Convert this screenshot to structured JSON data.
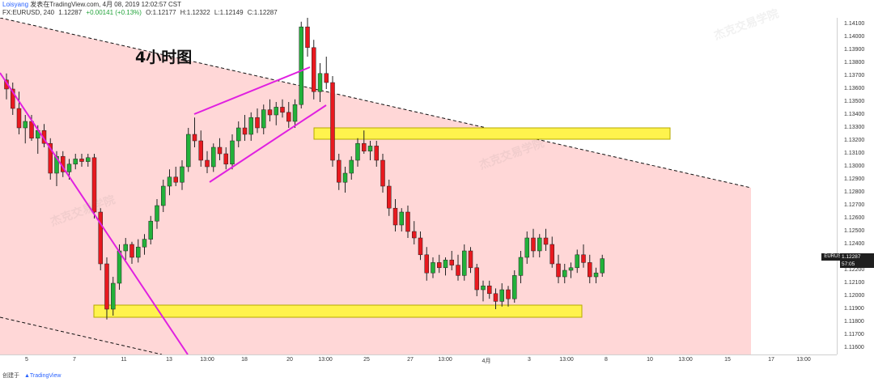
{
  "header": {
    "user": "Loisyang",
    "published": "发表在TradingView.com, 4月 08, 2019 12:02:57 CST",
    "symbol_line": "FX:EURUSD, 240",
    "price": "1.12287",
    "change": "+0.00141 (+0.13%)",
    "open": "O:1.12177",
    "high": "H:1.12322",
    "low": "L:1.12149",
    "close": "C:1.12287"
  },
  "annotation_text": "4小时图",
  "price_tag": {
    "symbol": "EURUSD",
    "price": "1.12287",
    "countdown": "57:05"
  },
  "footer": {
    "created_with": "创建于",
    "brand": "TradingView"
  },
  "watermark": {
    "cn": "杰克交易学院",
    "en": "JACK TRADING ACADEMY"
  },
  "colors": {
    "up": "#22b13a",
    "down": "#e8191f",
    "band_fill": "#ffd7d7",
    "zone": "#fff34d",
    "trendline": "#e020e0"
  },
  "chart_data": {
    "type": "candlestick",
    "y_axis_ticks": [
      "1.14100",
      "1.14000",
      "1.13900",
      "1.13800",
      "1.13700",
      "1.13600",
      "1.13500",
      "1.13400",
      "1.13300",
      "1.13200",
      "1.13100",
      "1.13000",
      "1.12900",
      "1.12800",
      "1.12700",
      "1.12600",
      "1.12500",
      "1.12400",
      "1.12300",
      "1.12200",
      "1.12100",
      "1.12000",
      "1.11900",
      "1.11800",
      "1.11700",
      "1.11600"
    ],
    "ylim": [
      1.1155,
      1.1415
    ],
    "x_axis_ticks": [
      "5",
      "7",
      "11",
      "13",
      "13:00",
      "18",
      "20",
      "13:00",
      "25",
      "27",
      "13:00",
      "4月",
      "3",
      "13:00",
      "8",
      "10",
      "13:00",
      "15",
      "17",
      "13:00"
    ],
    "candles": [
      {
        "o": 1.1367,
        "h": 1.1372,
        "l": 1.1352,
        "c": 1.136
      },
      {
        "o": 1.136,
        "h": 1.1365,
        "l": 1.134,
        "c": 1.1345
      },
      {
        "o": 1.1345,
        "h": 1.1358,
        "l": 1.1325,
        "c": 1.133
      },
      {
        "o": 1.133,
        "h": 1.134,
        "l": 1.1318,
        "c": 1.1335
      },
      {
        "o": 1.1335,
        "h": 1.134,
        "l": 1.132,
        "c": 1.1322
      },
      {
        "o": 1.1322,
        "h": 1.1332,
        "l": 1.131,
        "c": 1.1328
      },
      {
        "o": 1.1328,
        "h": 1.1333,
        "l": 1.1315,
        "c": 1.1318
      },
      {
        "o": 1.1318,
        "h": 1.1322,
        "l": 1.129,
        "c": 1.1295
      },
      {
        "o": 1.1295,
        "h": 1.1312,
        "l": 1.1285,
        "c": 1.1308
      },
      {
        "o": 1.1308,
        "h": 1.1312,
        "l": 1.1292,
        "c": 1.1296
      },
      {
        "o": 1.1296,
        "h": 1.1306,
        "l": 1.129,
        "c": 1.1302
      },
      {
        "o": 1.1302,
        "h": 1.131,
        "l": 1.1298,
        "c": 1.1306
      },
      {
        "o": 1.1306,
        "h": 1.131,
        "l": 1.13,
        "c": 1.1304
      },
      {
        "o": 1.1304,
        "h": 1.131,
        "l": 1.13,
        "c": 1.1307
      },
      {
        "o": 1.1307,
        "h": 1.131,
        "l": 1.126,
        "c": 1.1265
      },
      {
        "o": 1.1265,
        "h": 1.1268,
        "l": 1.122,
        "c": 1.1225
      },
      {
        "o": 1.1225,
        "h": 1.123,
        "l": 1.1182,
        "c": 1.119
      },
      {
        "o": 1.119,
        "h": 1.1215,
        "l": 1.1185,
        "c": 1.121
      },
      {
        "o": 1.121,
        "h": 1.124,
        "l": 1.1205,
        "c": 1.1235
      },
      {
        "o": 1.1235,
        "h": 1.1245,
        "l": 1.1228,
        "c": 1.124
      },
      {
        "o": 1.124,
        "h": 1.1242,
        "l": 1.1225,
        "c": 1.123
      },
      {
        "o": 1.123,
        "h": 1.1244,
        "l": 1.1226,
        "c": 1.1238
      },
      {
        "o": 1.1238,
        "h": 1.1248,
        "l": 1.1232,
        "c": 1.1244
      },
      {
        "o": 1.1244,
        "h": 1.1262,
        "l": 1.124,
        "c": 1.1258
      },
      {
        "o": 1.1258,
        "h": 1.1275,
        "l": 1.1252,
        "c": 1.127
      },
      {
        "o": 1.127,
        "h": 1.129,
        "l": 1.1265,
        "c": 1.1285
      },
      {
        "o": 1.1285,
        "h": 1.1298,
        "l": 1.1278,
        "c": 1.1292
      },
      {
        "o": 1.1292,
        "h": 1.13,
        "l": 1.1285,
        "c": 1.1288
      },
      {
        "o": 1.1288,
        "h": 1.1305,
        "l": 1.1282,
        "c": 1.13
      },
      {
        "o": 1.13,
        "h": 1.133,
        "l": 1.1296,
        "c": 1.1325
      },
      {
        "o": 1.1325,
        "h": 1.1338,
        "l": 1.1315,
        "c": 1.132
      },
      {
        "o": 1.132,
        "h": 1.1328,
        "l": 1.13,
        "c": 1.1305
      },
      {
        "o": 1.1305,
        "h": 1.1312,
        "l": 1.1295,
        "c": 1.13
      },
      {
        "o": 1.13,
        "h": 1.1318,
        "l": 1.1296,
        "c": 1.1315
      },
      {
        "o": 1.1315,
        "h": 1.1322,
        "l": 1.1305,
        "c": 1.131
      },
      {
        "o": 1.131,
        "h": 1.1315,
        "l": 1.1298,
        "c": 1.1302
      },
      {
        "o": 1.1302,
        "h": 1.1325,
        "l": 1.1298,
        "c": 1.132
      },
      {
        "o": 1.132,
        "h": 1.1335,
        "l": 1.1315,
        "c": 1.133
      },
      {
        "o": 1.133,
        "h": 1.134,
        "l": 1.132,
        "c": 1.1325
      },
      {
        "o": 1.1325,
        "h": 1.1342,
        "l": 1.132,
        "c": 1.1338
      },
      {
        "o": 1.1338,
        "h": 1.1345,
        "l": 1.1326,
        "c": 1.133
      },
      {
        "o": 1.133,
        "h": 1.1348,
        "l": 1.1325,
        "c": 1.1344
      },
      {
        "o": 1.1344,
        "h": 1.1352,
        "l": 1.1335,
        "c": 1.134
      },
      {
        "o": 1.134,
        "h": 1.135,
        "l": 1.1332,
        "c": 1.1346
      },
      {
        "o": 1.1346,
        "h": 1.1352,
        "l": 1.1338,
        "c": 1.1342
      },
      {
        "o": 1.1342,
        "h": 1.135,
        "l": 1.133,
        "c": 1.1335
      },
      {
        "o": 1.1335,
        "h": 1.1352,
        "l": 1.133,
        "c": 1.1348
      },
      {
        "o": 1.1348,
        "h": 1.1412,
        "l": 1.1345,
        "c": 1.1408
      },
      {
        "o": 1.1408,
        "h": 1.1415,
        "l": 1.1385,
        "c": 1.1392
      },
      {
        "o": 1.1392,
        "h": 1.1398,
        "l": 1.1352,
        "c": 1.1358
      },
      {
        "o": 1.1358,
        "h": 1.138,
        "l": 1.135,
        "c": 1.1372
      },
      {
        "o": 1.1372,
        "h": 1.1385,
        "l": 1.136,
        "c": 1.1365
      },
      {
        "o": 1.1365,
        "h": 1.137,
        "l": 1.13,
        "c": 1.1305
      },
      {
        "o": 1.1305,
        "h": 1.131,
        "l": 1.1282,
        "c": 1.1288
      },
      {
        "o": 1.1288,
        "h": 1.13,
        "l": 1.128,
        "c": 1.1295
      },
      {
        "o": 1.1295,
        "h": 1.1308,
        "l": 1.129,
        "c": 1.1305
      },
      {
        "o": 1.1305,
        "h": 1.1322,
        "l": 1.13,
        "c": 1.1318
      },
      {
        "o": 1.1318,
        "h": 1.1328,
        "l": 1.131,
        "c": 1.1312
      },
      {
        "o": 1.1312,
        "h": 1.132,
        "l": 1.1305,
        "c": 1.1316
      },
      {
        "o": 1.1316,
        "h": 1.132,
        "l": 1.13,
        "c": 1.1305
      },
      {
        "o": 1.1305,
        "h": 1.131,
        "l": 1.128,
        "c": 1.1285
      },
      {
        "o": 1.1285,
        "h": 1.129,
        "l": 1.1262,
        "c": 1.1268
      },
      {
        "o": 1.1268,
        "h": 1.1275,
        "l": 1.125,
        "c": 1.1255
      },
      {
        "o": 1.1255,
        "h": 1.1268,
        "l": 1.125,
        "c": 1.1265
      },
      {
        "o": 1.1265,
        "h": 1.127,
        "l": 1.1245,
        "c": 1.125
      },
      {
        "o": 1.125,
        "h": 1.1258,
        "l": 1.124,
        "c": 1.1245
      },
      {
        "o": 1.1245,
        "h": 1.125,
        "l": 1.1228,
        "c": 1.1232
      },
      {
        "o": 1.1232,
        "h": 1.1238,
        "l": 1.1212,
        "c": 1.1218
      },
      {
        "o": 1.1218,
        "h": 1.123,
        "l": 1.1214,
        "c": 1.1226
      },
      {
        "o": 1.1226,
        "h": 1.1232,
        "l": 1.1218,
        "c": 1.1222
      },
      {
        "o": 1.1222,
        "h": 1.123,
        "l": 1.1216,
        "c": 1.1228
      },
      {
        "o": 1.1228,
        "h": 1.1235,
        "l": 1.122,
        "c": 1.1224
      },
      {
        "o": 1.1224,
        "h": 1.1232,
        "l": 1.1212,
        "c": 1.1216
      },
      {
        "o": 1.1216,
        "h": 1.124,
        "l": 1.1212,
        "c": 1.1235
      },
      {
        "o": 1.1235,
        "h": 1.1238,
        "l": 1.1218,
        "c": 1.1222
      },
      {
        "o": 1.1222,
        "h": 1.1225,
        "l": 1.12,
        "c": 1.1205
      },
      {
        "o": 1.1205,
        "h": 1.1212,
        "l": 1.1196,
        "c": 1.1208
      },
      {
        "o": 1.1208,
        "h": 1.1212,
        "l": 1.1198,
        "c": 1.1202
      },
      {
        "o": 1.1202,
        "h": 1.1206,
        "l": 1.119,
        "c": 1.1196
      },
      {
        "o": 1.1196,
        "h": 1.121,
        "l": 1.1192,
        "c": 1.1205
      },
      {
        "o": 1.1205,
        "h": 1.1208,
        "l": 1.1192,
        "c": 1.1198
      },
      {
        "o": 1.1198,
        "h": 1.122,
        "l": 1.1195,
        "c": 1.1216
      },
      {
        "o": 1.1216,
        "h": 1.1235,
        "l": 1.121,
        "c": 1.123
      },
      {
        "o": 1.123,
        "h": 1.125,
        "l": 1.1225,
        "c": 1.1245
      },
      {
        "o": 1.1245,
        "h": 1.1252,
        "l": 1.123,
        "c": 1.1235
      },
      {
        "o": 1.1235,
        "h": 1.1248,
        "l": 1.123,
        "c": 1.1245
      },
      {
        "o": 1.1245,
        "h": 1.1252,
        "l": 1.1235,
        "c": 1.124
      },
      {
        "o": 1.124,
        "h": 1.1246,
        "l": 1.1222,
        "c": 1.1225
      },
      {
        "o": 1.1225,
        "h": 1.1232,
        "l": 1.121,
        "c": 1.1215
      },
      {
        "o": 1.1215,
        "h": 1.1225,
        "l": 1.121,
        "c": 1.122
      },
      {
        "o": 1.122,
        "h": 1.1226,
        "l": 1.1214,
        "c": 1.1222
      },
      {
        "o": 1.1222,
        "h": 1.1236,
        "l": 1.1218,
        "c": 1.1232
      },
      {
        "o": 1.1232,
        "h": 1.124,
        "l": 1.1222,
        "c": 1.1226
      },
      {
        "o": 1.1226,
        "h": 1.1232,
        "l": 1.121,
        "c": 1.1215
      },
      {
        "o": 1.1215,
        "h": 1.1222,
        "l": 1.121,
        "c": 1.1218
      },
      {
        "o": 1.1218,
        "h": 1.1232,
        "l": 1.1215,
        "c": 1.1229
      }
    ]
  }
}
